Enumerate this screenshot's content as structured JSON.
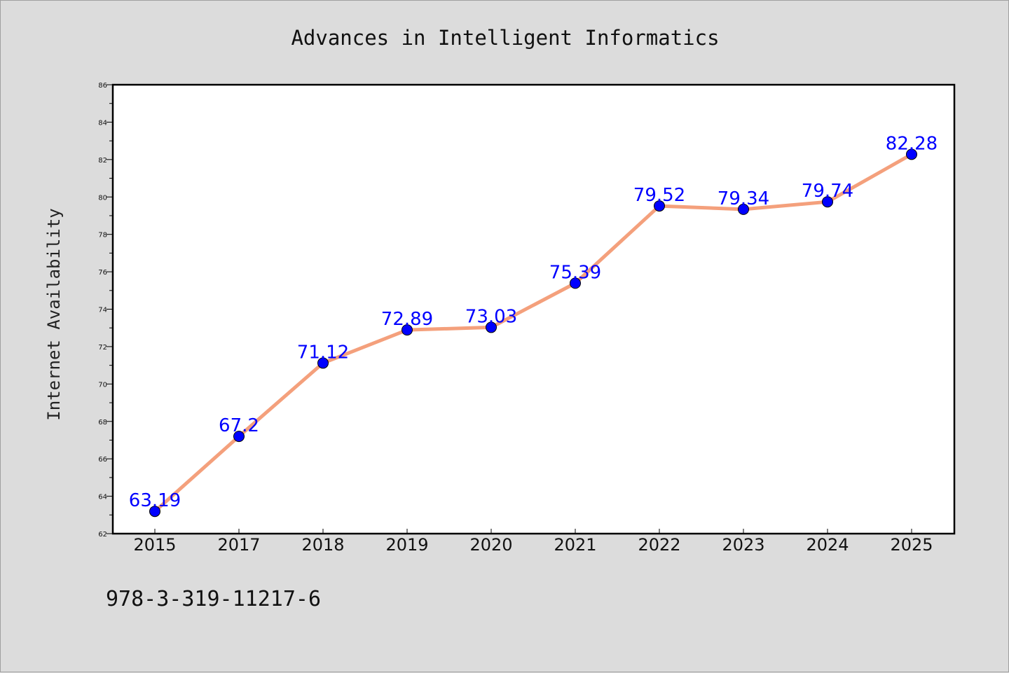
{
  "chart_data": {
    "type": "line",
    "title": "Advances in Intelligent Informatics",
    "xlabel": "",
    "ylabel": "Internet Availability",
    "categories": [
      "2015",
      "2017",
      "2018",
      "2019",
      "2020",
      "2021",
      "2022",
      "2023",
      "2024",
      "2025"
    ],
    "series": [
      {
        "values": [
          63.19,
          67.2,
          71.12,
          72.89,
          73.03,
          75.39,
          79.52,
          79.34,
          79.74,
          82.28
        ]
      }
    ],
    "data_labels": [
      "63.19",
      "67.2",
      "71.12",
      "72.89",
      "73.03",
      "75.39",
      "79.52",
      "79.34",
      "79.74",
      "82.28"
    ],
    "ylim": [
      62,
      86
    ],
    "yticks": [
      62,
      64,
      66,
      68,
      70,
      72,
      74,
      76,
      78,
      80,
      82,
      84,
      86
    ],
    "grid": false,
    "line_color": "#f4a07c",
    "marker_color": "#0000ff",
    "label_color": "#0000ff"
  },
  "footer": {
    "isbn": "978-3-319-11217-6"
  }
}
